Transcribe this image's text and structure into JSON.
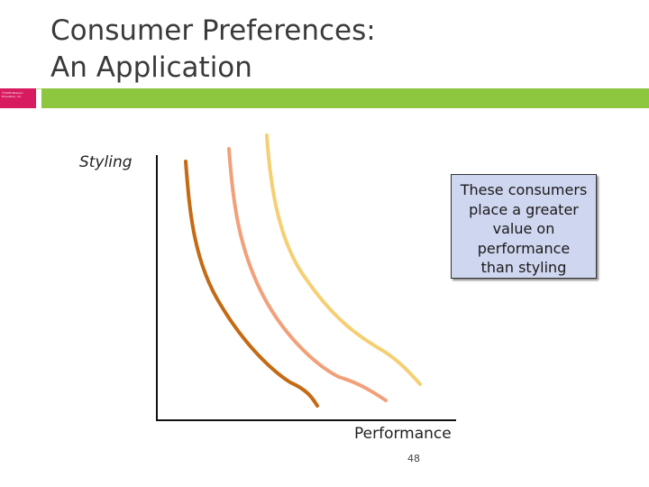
{
  "slide": {
    "title_line1": "Consumer Preferences:",
    "title_line2": "An Application",
    "copyright": "©2005 Pearson Education, Inc.",
    "page_number": "48"
  },
  "colors": {
    "accent_pink": "#d81b60",
    "accent_green": "#8dc63f",
    "callout_fill": "#cfd6ef"
  },
  "diagram": {
    "y_axis_label": "Styling",
    "x_axis_label": "Performance",
    "curves": [
      {
        "label": "indifference-curve-1",
        "color": "#c56a14"
      },
      {
        "label": "indifference-curve-2",
        "color": "#f2a07a"
      },
      {
        "label": "indifference-curve-3",
        "color": "#f5cf73"
      }
    ],
    "callout": {
      "lines": [
        "These consumers",
        "place a greater",
        "value on",
        "performance",
        "than styling"
      ]
    }
  }
}
